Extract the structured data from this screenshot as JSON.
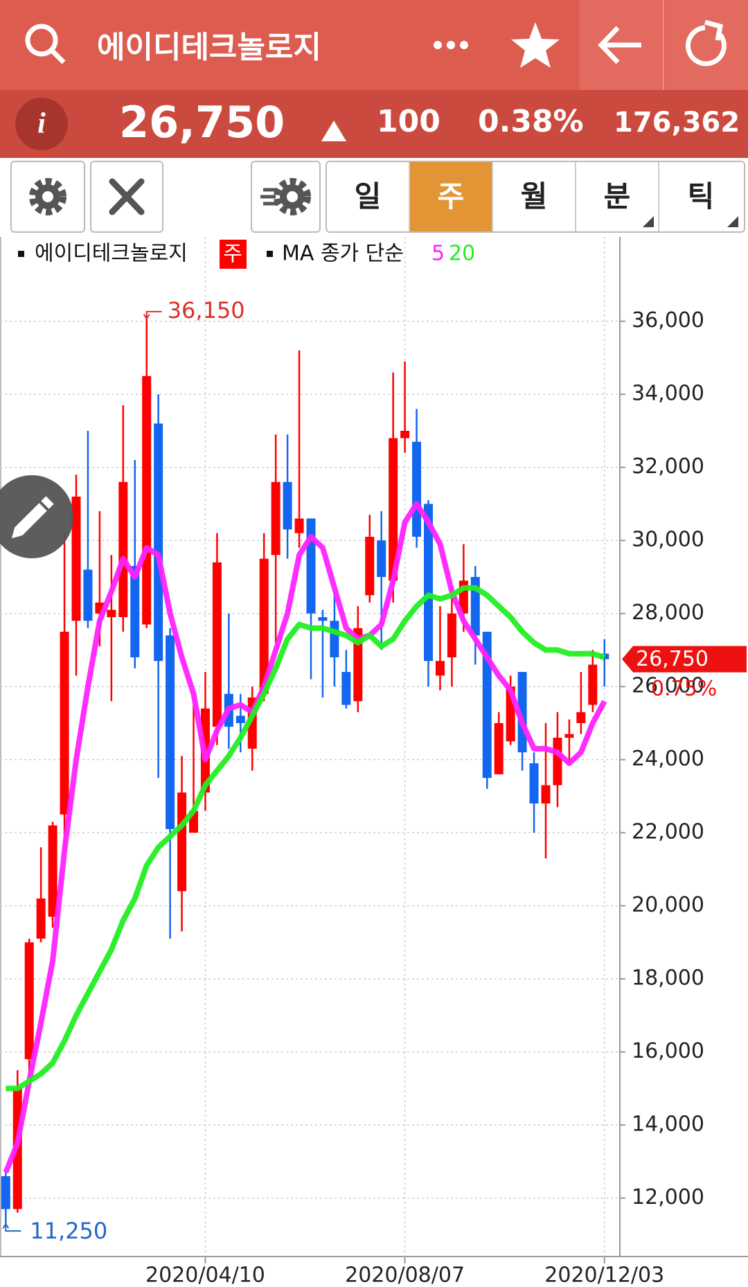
{
  "header": {
    "title": "에이디테크놀로지"
  },
  "quote": {
    "price": "26,750",
    "change": "100",
    "change_pct": "0.38%",
    "volume": "176,362"
  },
  "tabs": [
    "일",
    "주",
    "월",
    "분",
    "틱"
  ],
  "chart_data": {
    "type": "candlestick",
    "legend": {
      "name": "에이디테크놀로지",
      "period": "주",
      "ma_label": "MA 종가 단순"
    },
    "categories": [
      null,
      null,
      null,
      null,
      null,
      null,
      null,
      null,
      null,
      null,
      null,
      null,
      null,
      null,
      null,
      null,
      null,
      "2020/04/10",
      null,
      null,
      null,
      null,
      null,
      null,
      null,
      null,
      null,
      null,
      null,
      null,
      null,
      null,
      null,
      null,
      "2020/08/07",
      null,
      null,
      null,
      null,
      null,
      null,
      null,
      null,
      null,
      null,
      null,
      null,
      null,
      null,
      null,
      null,
      "2020/12/03"
    ],
    "open": [
      12600,
      11700,
      15800,
      19100,
      19700,
      22500,
      27800,
      29200,
      28000,
      27900,
      27900,
      29300,
      27700,
      33200,
      27400,
      20400,
      22000,
      23100,
      24900,
      25800,
      25200,
      24300,
      25800,
      29600,
      31600,
      30200,
      30600,
      27900,
      27800,
      26400,
      25600,
      28500,
      30000,
      28900,
      32800,
      32700,
      31000,
      26300,
      26800,
      28000,
      29000,
      27500,
      23600,
      24500,
      26400,
      23900,
      22800,
      23300,
      24600,
      25000,
      25500,
      26900
    ],
    "high": [
      12700,
      15500,
      19100,
      21600,
      22300,
      30200,
      31800,
      33000,
      30800,
      29600,
      33700,
      32200,
      36150,
      34000,
      27600,
      24100,
      25500,
      26400,
      30200,
      28000,
      25800,
      26000,
      30200,
      32900,
      32900,
      35200,
      30600,
      28100,
      28600,
      27000,
      28200,
      30700,
      30800,
      34600,
      34900,
      33600,
      31100,
      28200,
      28500,
      29900,
      29300,
      27400,
      25300,
      26300,
      26400,
      24200,
      25000,
      25300,
      25100,
      26400,
      27000,
      27300
    ],
    "low": [
      11250,
      11600,
      15400,
      19000,
      19400,
      21600,
      26300,
      27600,
      27100,
      25600,
      27500,
      26500,
      27600,
      23500,
      19100,
      19300,
      22000,
      22600,
      24400,
      24300,
      24200,
      23700,
      25600,
      27200,
      29500,
      29800,
      26200,
      25700,
      26000,
      25400,
      25300,
      28300,
      27000,
      28300,
      32400,
      29800,
      26000,
      25900,
      26000,
      27500,
      26600,
      23200,
      23600,
      24400,
      23700,
      22000,
      21300,
      22700,
      23900,
      24700,
      25300,
      26000
    ],
    "close": [
      11700,
      15000,
      19000,
      20200,
      22200,
      27500,
      31200,
      27800,
      28300,
      28100,
      31600,
      26800,
      34500,
      26700,
      22100,
      23100,
      22600,
      25400,
      29400,
      24900,
      25000,
      25700,
      29500,
      31600,
      30300,
      30600,
      28000,
      27800,
      26800,
      25500,
      27600,
      30100,
      29000,
      32800,
      33000,
      30100,
      26700,
      26700,
      28000,
      28900,
      27400,
      23500,
      25000,
      26000,
      24200,
      22800,
      23300,
      24600,
      24700,
      25300,
      26600,
      26750
    ],
    "up_color": "#ff0000",
    "down_color": "#1366f0",
    "series": [
      {
        "name": "5",
        "color": "#ff22ff",
        "values": [
          12700,
          13500,
          15200,
          16800,
          18500,
          21500,
          24000,
          26000,
          27800,
          28600,
          29500,
          29000,
          29800,
          29600,
          28000,
          26800,
          25800,
          24000,
          24800,
          25400,
          25500,
          25300,
          26000,
          27000,
          28000,
          29600,
          30100,
          29800,
          28700,
          27600,
          27300,
          27400,
          27700,
          28900,
          30500,
          31000,
          30500,
          29900,
          28600,
          27800,
          27300,
          26800,
          26300,
          25900,
          25000,
          24300,
          24300,
          24200,
          23900,
          24200,
          25000,
          25600
        ]
      },
      {
        "name": "20",
        "color": "#22ee22",
        "values": [
          15000,
          15000,
          15200,
          15400,
          15700,
          16300,
          17000,
          17600,
          18200,
          18800,
          19600,
          20200,
          21100,
          21600,
          21900,
          22200,
          22600,
          23300,
          23700,
          24100,
          24600,
          25200,
          25800,
          26500,
          27300,
          27700,
          27600,
          27600,
          27500,
          27400,
          27200,
          27400,
          27100,
          27300,
          27800,
          28200,
          28500,
          28400,
          28500,
          28700,
          28700,
          28500,
          28200,
          27900,
          27500,
          27200,
          27000,
          27000,
          26900,
          26900,
          26900,
          26800
        ]
      }
    ],
    "ylim": [
      10400,
      38270
    ],
    "yticks": [
      {
        "value": 12000,
        "label": "12,000"
      },
      {
        "value": 14000,
        "label": "14,000"
      },
      {
        "value": 16000,
        "label": "16,000"
      },
      {
        "value": 18000,
        "label": "18,000"
      },
      {
        "value": 20000,
        "label": "20,000"
      },
      {
        "value": 22000,
        "label": "22,000"
      },
      {
        "value": 24000,
        "label": "24,000"
      },
      {
        "value": 26000,
        "label": "26,000"
      },
      {
        "value": 28000,
        "label": "28,000"
      },
      {
        "value": 30000,
        "label": "30,000"
      },
      {
        "value": 32000,
        "label": "32,000"
      },
      {
        "value": 34000,
        "label": "34,000"
      },
      {
        "value": 36000,
        "label": "36,000"
      }
    ],
    "grid": true,
    "annotations": {
      "max": {
        "value": 36150,
        "label": "36,150"
      },
      "min": {
        "value": 11250,
        "label": "11,250"
      },
      "last": {
        "value": 26750,
        "label": "26,750"
      },
      "last_pct": "0.75%"
    }
  }
}
